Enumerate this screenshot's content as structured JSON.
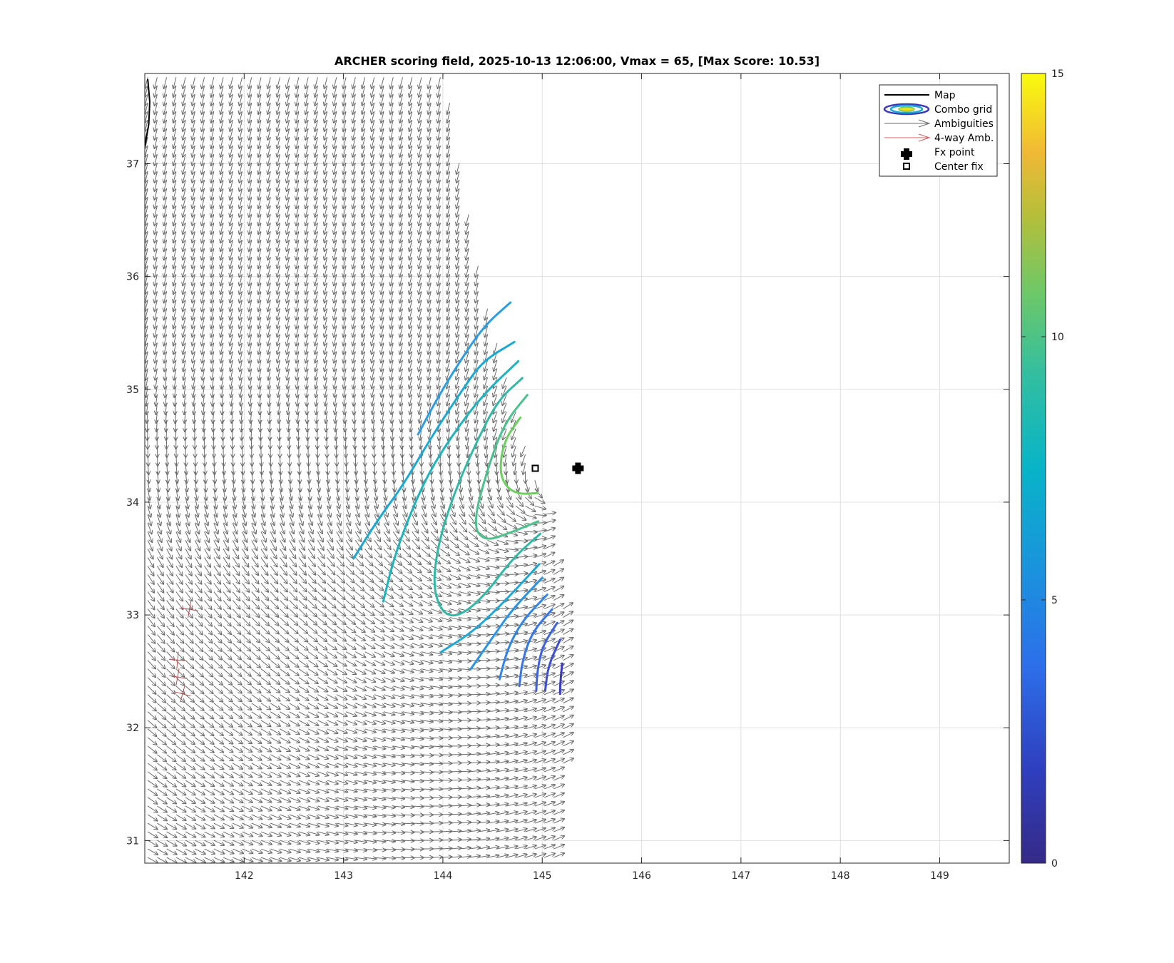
{
  "chart_data": {
    "type": "contour",
    "title": "ARCHER scoring field, 2025-10-13 12:06:00, Vmax = 65, [Max Score: 10.53]",
    "xlabel": "",
    "ylabel": "",
    "xlim": [
      141.0,
      149.7
    ],
    "ylim": [
      30.8,
      37.8
    ],
    "x_ticks": [
      142,
      143,
      144,
      145,
      146,
      147,
      148,
      149
    ],
    "y_ticks": [
      31,
      32,
      33,
      34,
      35,
      36,
      37
    ],
    "grid": true,
    "legend_position": "top-right",
    "legend": [
      {
        "label": "Map",
        "symbol": "line"
      },
      {
        "label": "Combo grid",
        "symbol": "ellipses"
      },
      {
        "label": "Ambiguities",
        "symbol": "gray-arrow"
      },
      {
        "label": "4-way Amb.",
        "symbol": "red-arrow"
      },
      {
        "label": "Fx point",
        "symbol": "filled-cross"
      },
      {
        "label": "Center fix",
        "symbol": "open-square"
      }
    ],
    "colorbar": {
      "min": 0,
      "max": 15,
      "ticks": [
        0,
        5,
        10,
        15
      ],
      "colormap": "parula"
    },
    "fx_point": {
      "lon": 145.36,
      "lat": 34.3
    },
    "center_fix": {
      "lon": 144.93,
      "lat": 34.3
    },
    "map_line": [
      [
        141.03,
        37.75
      ],
      [
        141.05,
        37.55
      ],
      [
        141.04,
        37.35
      ],
      [
        141.0,
        37.15
      ]
    ],
    "swath": [
      [
        141.0,
        37.8
      ],
      [
        144.02,
        37.8
      ],
      [
        144.4,
        35.9
      ],
      [
        145.0,
        34.0
      ],
      [
        145.27,
        32.8
      ],
      [
        145.17,
        30.85
      ],
      [
        141.0,
        30.85
      ]
    ],
    "four_way_ambiguities": [
      {
        "lon": 141.45,
        "lat": 33.05,
        "angle": -80
      },
      {
        "lon": 141.33,
        "lat": 32.6,
        "angle": -85
      },
      {
        "lon": 141.33,
        "lat": 32.45,
        "angle": -80
      },
      {
        "lon": 141.38,
        "lat": 32.3,
        "angle": -75
      }
    ],
    "contours": [
      {
        "level": 9.0,
        "color": "#6ccf5e",
        "points": [
          [
            144.78,
            34.75
          ],
          [
            144.62,
            34.55
          ],
          [
            144.57,
            34.3
          ],
          [
            144.62,
            34.15
          ],
          [
            144.75,
            34.07
          ],
          [
            144.95,
            34.08
          ]
        ]
      },
      {
        "level": 8.3,
        "color": "#4bc28c",
        "points": [
          [
            144.85,
            34.95
          ],
          [
            144.62,
            34.7
          ],
          [
            144.45,
            34.3
          ],
          [
            144.3,
            33.8
          ],
          [
            144.42,
            33.65
          ],
          [
            144.68,
            33.73
          ],
          [
            144.96,
            33.83
          ]
        ]
      },
      {
        "level": 7.7,
        "color": "#31b8a6",
        "points": [
          [
            144.8,
            35.1
          ],
          [
            144.55,
            34.9
          ],
          [
            144.32,
            34.5
          ],
          [
            144.1,
            34.05
          ],
          [
            143.95,
            33.62
          ],
          [
            143.9,
            33.25
          ],
          [
            143.99,
            33.02
          ],
          [
            144.15,
            32.98
          ],
          [
            144.4,
            33.15
          ],
          [
            144.7,
            33.5
          ],
          [
            144.98,
            33.72
          ]
        ]
      },
      {
        "level": 6.9,
        "color": "#1fb4bd",
        "points": [
          [
            144.76,
            35.25
          ],
          [
            144.4,
            34.95
          ],
          [
            144.1,
            34.6
          ],
          [
            143.85,
            34.25
          ],
          [
            143.65,
            33.85
          ],
          [
            143.5,
            33.48
          ],
          [
            143.4,
            33.12
          ]
        ]
      },
      {
        "level": 6.0,
        "color": "#1aa9d3",
        "points": [
          [
            144.72,
            35.42
          ],
          [
            144.4,
            35.25
          ],
          [
            144.2,
            35.0
          ],
          [
            143.9,
            34.6
          ],
          [
            143.6,
            34.15
          ],
          [
            143.35,
            33.85
          ],
          [
            143.1,
            33.5
          ]
        ]
      },
      {
        "level": 5.8,
        "color": "#2a9de3",
        "points": [
          [
            144.68,
            35.77
          ],
          [
            144.4,
            35.55
          ],
          [
            144.1,
            35.15
          ],
          [
            143.9,
            34.85
          ],
          [
            143.75,
            34.6
          ]
        ]
      },
      {
        "level": 6.6,
        "color": "#1fa8d6",
        "points": [
          [
            144.97,
            33.45
          ],
          [
            144.6,
            33.1
          ],
          [
            144.3,
            32.85
          ],
          [
            143.98,
            32.67
          ]
        ]
      },
      {
        "level": 5.6,
        "color": "#2a95e6",
        "points": [
          [
            145.0,
            33.33
          ],
          [
            144.7,
            33.05
          ],
          [
            144.5,
            32.8
          ],
          [
            144.28,
            32.52
          ]
        ]
      },
      {
        "level": 4.8,
        "color": "#2f86ea",
        "points": [
          [
            145.05,
            33.18
          ],
          [
            144.8,
            32.95
          ],
          [
            144.65,
            32.7
          ],
          [
            144.57,
            32.43
          ]
        ]
      },
      {
        "level": 4.0,
        "color": "#3575ea",
        "points": [
          [
            145.1,
            33.05
          ],
          [
            144.9,
            32.85
          ],
          [
            144.8,
            32.6
          ],
          [
            144.77,
            32.37
          ]
        ]
      },
      {
        "level": 3.2,
        "color": "#3b63e0",
        "points": [
          [
            145.15,
            32.93
          ],
          [
            145.0,
            32.72
          ],
          [
            144.95,
            32.5
          ],
          [
            144.94,
            32.33
          ]
        ]
      },
      {
        "level": 2.4,
        "color": "#3e4fd2",
        "points": [
          [
            145.18,
            32.78
          ],
          [
            145.06,
            32.55
          ],
          [
            145.03,
            32.33
          ]
        ]
      },
      {
        "level": 1.6,
        "color": "#3a3ac0",
        "points": [
          [
            145.2,
            32.57
          ],
          [
            145.18,
            32.37
          ],
          [
            145.18,
            32.3
          ]
        ]
      }
    ],
    "vortex_center": {
      "lon": 144.93,
      "lat": 34.3
    }
  }
}
